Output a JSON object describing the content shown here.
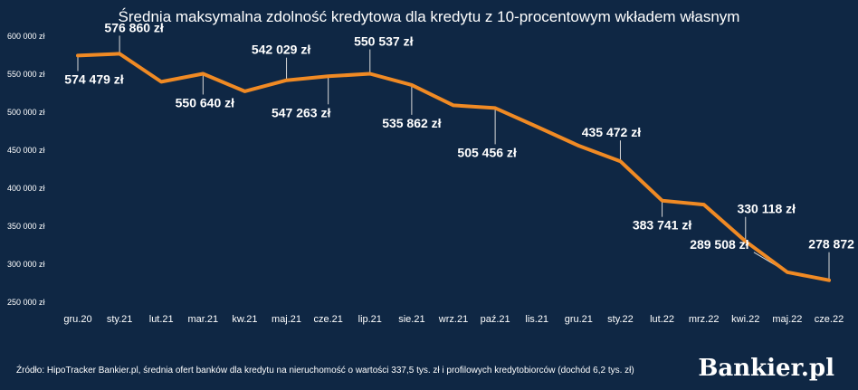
{
  "chart_data": {
    "type": "line",
    "title": "Średnia maksymalna zdolność kredytowa dla kredytu z 10-procentowym wkładem własnym",
    "categories": [
      "gru.20",
      "sty.21",
      "lut.21",
      "mar.21",
      "kw.21",
      "maj.21",
      "cze.21",
      "lip.21",
      "sie.21",
      "wrz.21",
      "paź.21",
      "lis.21",
      "gru.21",
      "sty.22",
      "lut.22",
      "mrz.22",
      "kwi.22",
      "maj.22",
      "cze.22"
    ],
    "series": [
      {
        "values": [
          574479,
          576860,
          540000,
          550640,
          527500,
          542029,
          547263,
          550537,
          535862,
          509000,
          505456,
          481000,
          456000,
          435472,
          383741,
          378500,
          330118,
          289508,
          278872
        ]
      }
    ],
    "data_labels": [
      {
        "index": 0,
        "text": "574 479 zł"
      },
      {
        "index": 1,
        "text": "576 860 zł"
      },
      {
        "index": 3,
        "text": "550 640 zł"
      },
      {
        "index": 5,
        "text": "542 029 zł"
      },
      {
        "index": 6,
        "text": "547 263 zł"
      },
      {
        "index": 7,
        "text": "550 537 zł"
      },
      {
        "index": 8,
        "text": "535 862 zł"
      },
      {
        "index": 10,
        "text": "505 456 zł"
      },
      {
        "index": 13,
        "text": "435 472 zł"
      },
      {
        "index": 14,
        "text": "383 741 zł"
      },
      {
        "index": 16,
        "text": "330 118 zł"
      },
      {
        "index": 17,
        "text": "289 508 zł"
      },
      {
        "index": 18,
        "text": "278 872 zł"
      }
    ],
    "y_ticks": [
      {
        "value": 250000,
        "label": "250 000 zł"
      },
      {
        "value": 300000,
        "label": "300 000 zł"
      },
      {
        "value": 350000,
        "label": "350 000 zł"
      },
      {
        "value": 400000,
        "label": "400 000 zł"
      },
      {
        "value": 450000,
        "label": "450 000 zł"
      },
      {
        "value": 500000,
        "label": "500 000 zł"
      },
      {
        "value": 550000,
        "label": "550 000 zł"
      },
      {
        "value": 600000,
        "label": "600 000 zł"
      }
    ],
    "ylim": [
      250000,
      600000
    ],
    "grid": false,
    "legend": "none",
    "colors": {
      "background": "#0f2744",
      "line": "#f08a24",
      "text": "#ffffff"
    }
  },
  "footer": {
    "source": "Źródło: HipoTracker Bankier.pl, średnia ofert banków dla kredytu na nieruchomość o wartości 337,5 tys. zł i profilowych kredytobiorców (dochód 6,2 tys. zł)",
    "logo_text": "Bankier.pl"
  }
}
